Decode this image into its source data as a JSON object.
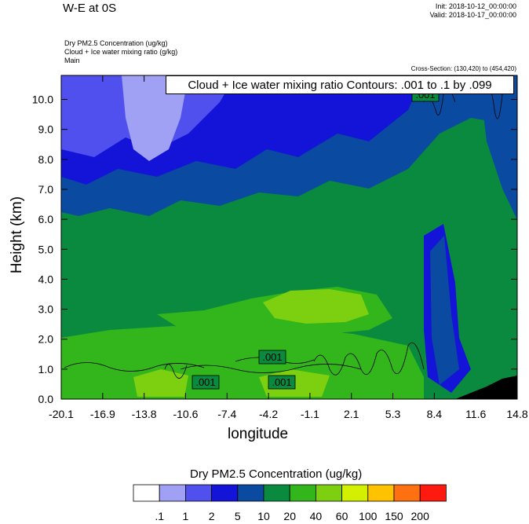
{
  "header": {
    "title": "W-E at 0S",
    "init": "Init: 2018-10-12_00:00:00",
    "valid": "Valid: 2018-10-17_00:00:00",
    "var1": "Dry PM2.5 Concentration   (ug/kg)",
    "var2": "Cloud + Ice water mixing ratio   (g/kg)",
    "var3": "Main",
    "cross_section": "Cross-Section: (130,420) to (454,420)",
    "contour_note": "Cloud + Ice water mixing ratio Contours: .001 to .1 by .099"
  },
  "chart_data": {
    "type": "heatmap",
    "xlabel": "longitude",
    "ylabel": "Height (km)",
    "x_ticks": [
      "-20.1",
      "-16.9",
      "-13.8",
      "-10.6",
      "-7.4",
      "-4.2",
      "-1.1",
      "2.1",
      "5.3",
      "8.4",
      "11.6",
      "14.8"
    ],
    "y_ticks": [
      "0.0",
      "1.0",
      "2.0",
      "3.0",
      "4.0",
      "5.0",
      "6.0",
      "7.0",
      "8.0",
      "9.0",
      "10.0"
    ],
    "xlim": [
      -20.1,
      14.8
    ],
    "ylim": [
      0,
      10.8
    ],
    "contour_labels": [
      ".001",
      ".001",
      ".001",
      ".001"
    ],
    "colorbar": {
      "title": "Dry PM2.5 Concentration  (ug/kg)",
      "labels": [
        ".1",
        "1",
        "2",
        "5",
        "10",
        "20",
        "40",
        "60",
        "100",
        "150",
        "200"
      ],
      "colors": [
        "#ffffff",
        "#a0a0f5",
        "#5050ee",
        "#1414d8",
        "#0a4aa0",
        "#0a8a3e",
        "#33b51c",
        "#7dd010",
        "#d2f000",
        "#ffc200",
        "#ff7010",
        "#ff1a10"
      ]
    }
  }
}
